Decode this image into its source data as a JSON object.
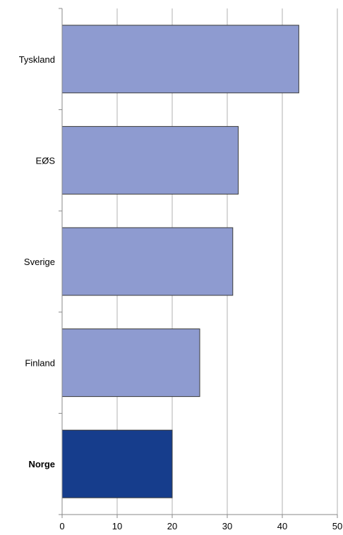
{
  "chart_data": {
    "type": "bar",
    "orientation": "horizontal",
    "title": "",
    "xlabel": "",
    "ylabel": "",
    "categories": [
      "Tyskland",
      "EØS",
      "Sverige",
      "Finland",
      "Norge"
    ],
    "values": [
      43,
      32,
      31,
      25,
      20
    ],
    "highlight": "Norge",
    "xlim": [
      0,
      50
    ],
    "xticks": [
      0,
      10,
      20,
      30,
      40,
      50
    ],
    "grid": "vertical",
    "legend": "none",
    "colors": {
      "bar": "#8e9bd0",
      "highlight_bar": "#163d8c",
      "bar_edge": "#3a3a3a",
      "grid": "#b0b0b0",
      "axis": "#888888"
    }
  }
}
